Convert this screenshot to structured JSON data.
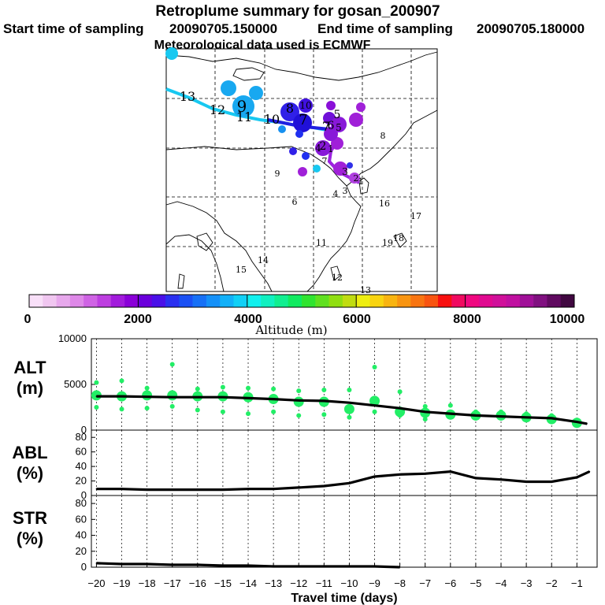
{
  "header": {
    "title": "Retroplume summary for gosan_200907",
    "start_label": "Start time of sampling",
    "start_value": "20090705.150000",
    "end_label": "End time of sampling",
    "end_value": "20090705.180000",
    "met_line": "Meteorological data used is ECMWF"
  },
  "colorbar": {
    "ticks": [
      "0",
      "2000",
      "4000",
      "6000",
      "8000",
      "10000"
    ],
    "label": "Altitude (m)",
    "colors": [
      "#f8dff8",
      "#f0c6f0",
      "#e7a8ec",
      "#de88e8",
      "#cf63e4",
      "#bd3ee0",
      "#a21bdc",
      "#8a00d8",
      "#6a00dc",
      "#4a10e8",
      "#2a30f0",
      "#1a50f4",
      "#1670f6",
      "#1490f8",
      "#12b0f8",
      "#10d0f6",
      "#10f0ee",
      "#10f0c0",
      "#10ee90",
      "#10ea60",
      "#30e430",
      "#60e020",
      "#90de10",
      "#c0dc10",
      "#eeee10",
      "#f8d410",
      "#f8b410",
      "#f89410",
      "#f87410",
      "#f85410",
      "#f81010",
      "#f00a60",
      "#f00880",
      "#e00a90",
      "#d0109a",
      "#c010a0",
      "#a01098",
      "#801080",
      "#600a60",
      "#400840"
    ]
  },
  "map": {
    "plume_labels": [
      "13",
      "12",
      "9",
      "11",
      "10",
      "8",
      "10",
      "7",
      "5",
      "6",
      "7",
      "5",
      "2",
      "1",
      "4",
      "3",
      "4",
      "3",
      "2",
      "1",
      "11",
      "12",
      "13",
      "14",
      "15",
      "16",
      "17",
      "18",
      "19",
      "7",
      "8",
      "9",
      "6"
    ]
  },
  "icons": {
    "track-line": "polyline",
    "cluster-marker": "circle"
  },
  "chart_data": [
    {
      "type": "line",
      "panel": "ALT",
      "ylabel_line1": "ALT",
      "ylabel_line2": "(m)",
      "ylim": [
        0,
        10000
      ],
      "yticks": [
        "10000",
        "5000",
        "0"
      ],
      "x": [
        -20,
        -19,
        -18,
        -17,
        -16,
        -15,
        -14,
        -13,
        -12,
        -11,
        -10,
        -9,
        -8,
        -7,
        -6,
        -5,
        -4,
        -3,
        -2,
        -1,
        -0.6
      ],
      "values": [
        3700,
        3700,
        3650,
        3600,
        3600,
        3600,
        3500,
        3400,
        3250,
        3200,
        3000,
        2700,
        2400,
        2000,
        1800,
        1600,
        1500,
        1400,
        1300,
        900,
        700
      ],
      "clusters": [
        {
          "x": -20,
          "alt": [
            5200,
            3800,
            2500
          ]
        },
        {
          "x": -19,
          "alt": [
            5400,
            3700,
            2300
          ]
        },
        {
          "x": -18,
          "alt": [
            4600,
            3800,
            2400
          ]
        },
        {
          "x": -17,
          "alt": [
            7200,
            3800,
            2600
          ]
        },
        {
          "x": -16,
          "alt": [
            4500,
            3700,
            2200
          ]
        },
        {
          "x": -15,
          "alt": [
            4700,
            3700,
            2000
          ]
        },
        {
          "x": -14,
          "alt": [
            4600,
            3600,
            1800
          ]
        },
        {
          "x": -13,
          "alt": [
            4500,
            3400,
            2000
          ]
        },
        {
          "x": -12,
          "alt": [
            4300,
            3100,
            1600
          ]
        },
        {
          "x": -11,
          "alt": [
            4400,
            3100,
            1700
          ]
        },
        {
          "x": -10,
          "alt": [
            4400,
            2300,
            1400
          ]
        },
        {
          "x": -9,
          "alt": [
            6900,
            3200,
            2000
          ]
        },
        {
          "x": -8,
          "alt": [
            4200,
            2000,
            1600
          ]
        },
        {
          "x": -7,
          "alt": [
            2600,
            1900,
            1200
          ]
        },
        {
          "x": -6,
          "alt": [
            2700,
            1700,
            1400
          ]
        },
        {
          "x": -5,
          "alt": [
            2000,
            1600,
            1300
          ]
        },
        {
          "x": -4,
          "alt": [
            2000,
            1600,
            1300
          ]
        },
        {
          "x": -3,
          "alt": [
            1800,
            1400,
            1200
          ]
        },
        {
          "x": -2,
          "alt": [
            1600,
            1200,
            900
          ]
        },
        {
          "x": -1,
          "alt": [
            1100,
            800,
            500
          ]
        }
      ]
    },
    {
      "type": "line",
      "panel": "ABL",
      "ylabel_line1": "ABL",
      "ylabel_line2": "(%)",
      "ylim": [
        0,
        90
      ],
      "yticks": [
        "80",
        "60",
        "40",
        "20",
        "0"
      ],
      "x": [
        -20,
        -19,
        -18,
        -17,
        -16,
        -15,
        -14,
        -13,
        -12,
        -11,
        -10,
        -9,
        -8,
        -7,
        -6,
        -5,
        -4,
        -3,
        -2,
        -1,
        -0.5
      ],
      "values": [
        9,
        9,
        8,
        8,
        8,
        8,
        9,
        9,
        11,
        13,
        17,
        26,
        29,
        30,
        33,
        24,
        22,
        19,
        19,
        25,
        33
      ]
    },
    {
      "type": "line",
      "panel": "STR",
      "ylabel_line1": "STR",
      "ylabel_line2": "(%)",
      "ylim": [
        0,
        90
      ],
      "yticks": [
        "80",
        "60",
        "40",
        "20",
        "0"
      ],
      "x": [
        -20,
        -19,
        -18,
        -17,
        -16,
        -15,
        -14,
        -13,
        -12,
        -11,
        -10,
        -9,
        -8
      ],
      "values": [
        5,
        4,
        4,
        3,
        3,
        2,
        2,
        1,
        1,
        1,
        1,
        1,
        0
      ]
    }
  ],
  "xaxis": {
    "label": "Travel time (days)",
    "ticks": [
      "−20",
      "−19",
      "−18",
      "−17",
      "−16",
      "−15",
      "−14",
      "−13",
      "−12",
      "−11",
      "−10",
      "−9",
      "−8",
      "−7",
      "−6",
      "−5",
      "−4",
      "−3",
      "−2",
      "−1"
    ],
    "values": [
      -20,
      -19,
      -18,
      -17,
      -16,
      -15,
      -14,
      -13,
      -12,
      -11,
      -10,
      -9,
      -8,
      -7,
      -6,
      -5,
      -4,
      -3,
      -2,
      -1
    ]
  }
}
